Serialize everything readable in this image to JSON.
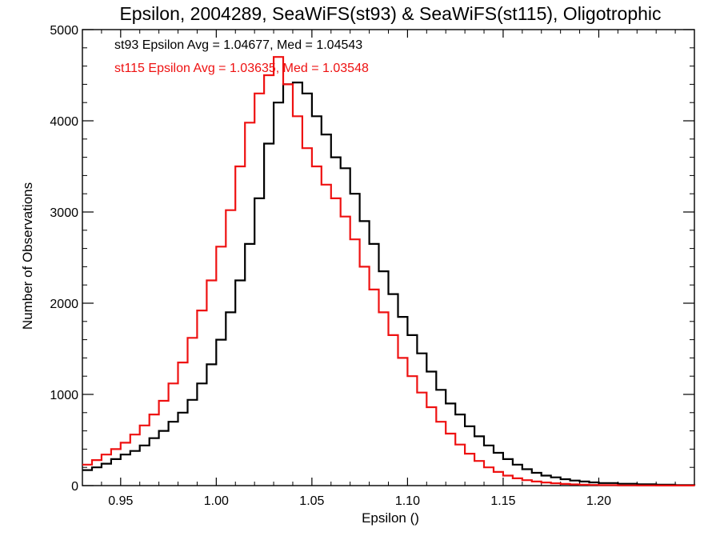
{
  "chart_data": {
    "type": "line",
    "title": "Epsilon, 2004289, SeaWiFS(st93) & SeaWiFS(st115), Oligotrophic",
    "xlabel": "Epsilon ()",
    "ylabel": "Number of Observations",
    "xlim": [
      0.93,
      1.25
    ],
    "ylim": [
      0,
      5000
    ],
    "x_ticks": [
      0.95,
      1.0,
      1.05,
      1.1,
      1.15,
      1.2
    ],
    "x_tick_labels": [
      "0.95",
      "1.00",
      "1.05",
      "1.10",
      "1.15",
      "1.20"
    ],
    "y_ticks": [
      0,
      1000,
      2000,
      3000,
      4000,
      5000
    ],
    "y_tick_labels": [
      "0",
      "1000",
      "2000",
      "3000",
      "4000",
      "5000"
    ],
    "grid": false,
    "step": true,
    "annotations": [
      {
        "text": "st93 Epsilon Avg = 1.04677, Med = 1.04543",
        "color": "#000000"
      },
      {
        "text": "st115 Epsilon Avg = 1.03635, Med = 1.03548",
        "color": "#ee1111"
      }
    ],
    "series": [
      {
        "color": "#000000",
        "x": [
          0.93,
          0.935,
          0.94,
          0.945,
          0.95,
          0.955,
          0.96,
          0.965,
          0.97,
          0.975,
          0.98,
          0.985,
          0.99,
          0.995,
          1.0,
          1.005,
          1.01,
          1.015,
          1.02,
          1.025,
          1.03,
          1.035,
          1.04,
          1.045,
          1.05,
          1.055,
          1.06,
          1.065,
          1.07,
          1.075,
          1.08,
          1.085,
          1.09,
          1.095,
          1.1,
          1.105,
          1.11,
          1.115,
          1.12,
          1.125,
          1.13,
          1.135,
          1.14,
          1.145,
          1.15,
          1.155,
          1.16,
          1.165,
          1.17,
          1.175,
          1.18,
          1.185,
          1.19,
          1.195,
          1.2,
          1.21,
          1.22,
          1.23,
          1.24,
          1.25
        ],
        "y": [
          170,
          200,
          240,
          290,
          340,
          380,
          440,
          520,
          600,
          700,
          800,
          940,
          1120,
          1330,
          1600,
          1900,
          2250,
          2650,
          3150,
          3750,
          4200,
          4400,
          4420,
          4300,
          4050,
          3850,
          3600,
          3480,
          3200,
          2900,
          2650,
          2350,
          2100,
          1850,
          1650,
          1450,
          1250,
          1050,
          900,
          780,
          650,
          540,
          440,
          360,
          290,
          230,
          180,
          140,
          110,
          90,
          70,
          55,
          45,
          35,
          28,
          20,
          15,
          10,
          6,
          4
        ]
      },
      {
        "color": "#ee1111",
        "x": [
          0.93,
          0.935,
          0.94,
          0.945,
          0.95,
          0.955,
          0.96,
          0.965,
          0.97,
          0.975,
          0.98,
          0.985,
          0.99,
          0.995,
          1.0,
          1.005,
          1.01,
          1.015,
          1.02,
          1.025,
          1.03,
          1.035,
          1.04,
          1.045,
          1.05,
          1.055,
          1.06,
          1.065,
          1.07,
          1.075,
          1.08,
          1.085,
          1.09,
          1.095,
          1.1,
          1.105,
          1.11,
          1.115,
          1.12,
          1.125,
          1.13,
          1.135,
          1.14,
          1.145,
          1.15,
          1.155,
          1.16,
          1.165,
          1.17,
          1.175,
          1.18,
          1.185,
          1.19,
          1.195,
          1.2,
          1.21,
          1.22,
          1.23,
          1.24,
          1.25
        ],
        "y": [
          230,
          280,
          340,
          400,
          470,
          560,
          660,
          780,
          930,
          1120,
          1350,
          1620,
          1920,
          2250,
          2620,
          3020,
          3500,
          3980,
          4300,
          4500,
          4700,
          4400,
          4050,
          3700,
          3500,
          3300,
          3150,
          2950,
          2700,
          2400,
          2150,
          1900,
          1650,
          1400,
          1200,
          1020,
          860,
          700,
          570,
          450,
          350,
          270,
          200,
          150,
          110,
          80,
          60,
          45,
          34,
          25,
          18,
          13,
          10,
          7,
          5,
          3,
          2,
          1,
          1,
          0
        ]
      }
    ]
  }
}
